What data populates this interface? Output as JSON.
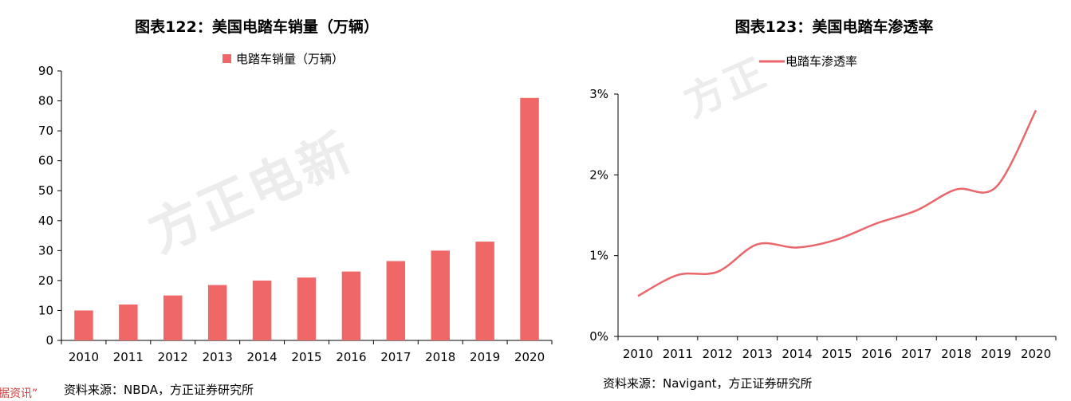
{
  "colors": {
    "bar": "#f06767",
    "line": "#e9676a",
    "axis": "#000000"
  },
  "chart_data": [
    {
      "type": "bar",
      "title": "图表122：美国电踏车销量（万辆）",
      "legend": [
        "电踏车销量（万辆）"
      ],
      "legend_position": "top-center",
      "categories": [
        "2010",
        "2011",
        "2012",
        "2013",
        "2014",
        "2015",
        "2016",
        "2017",
        "2018",
        "2019",
        "2020"
      ],
      "series": [
        {
          "name": "电踏车销量（万辆）",
          "values": [
            10,
            12,
            15,
            18.5,
            20,
            21,
            23,
            26.5,
            30,
            33,
            81
          ]
        }
      ],
      "yticks": [
        "0",
        "10",
        "20",
        "30",
        "40",
        "50",
        "60",
        "70",
        "80",
        "90"
      ],
      "ylim": [
        0,
        90
      ],
      "grid": false,
      "source": "资料来源：NBDA，方正证券研究所"
    },
    {
      "type": "line",
      "title": "图表123：美国电踏车渗透率",
      "legend": [
        "电踏车渗透率"
      ],
      "legend_position": "top-left",
      "categories": [
        "2010",
        "2011",
        "2012",
        "2013",
        "2014",
        "2015",
        "2016",
        "2017",
        "2018",
        "2019",
        "2020"
      ],
      "series": [
        {
          "name": "电踏车渗透率",
          "values": [
            0.5,
            0.76,
            0.8,
            1.14,
            1.1,
            1.2,
            1.4,
            1.56,
            1.82,
            1.85,
            2.8
          ]
        }
      ],
      "yticks": [
        "0%",
        "1%",
        "2%",
        "3%"
      ],
      "ylim": [
        0,
        3
      ],
      "grid": false,
      "source": "资料来源：Navigant，方正证券研究所"
    }
  ],
  "watermark": {
    "left": "方正电新",
    "right": "方正"
  },
  "clipped_note": "据资讯”"
}
